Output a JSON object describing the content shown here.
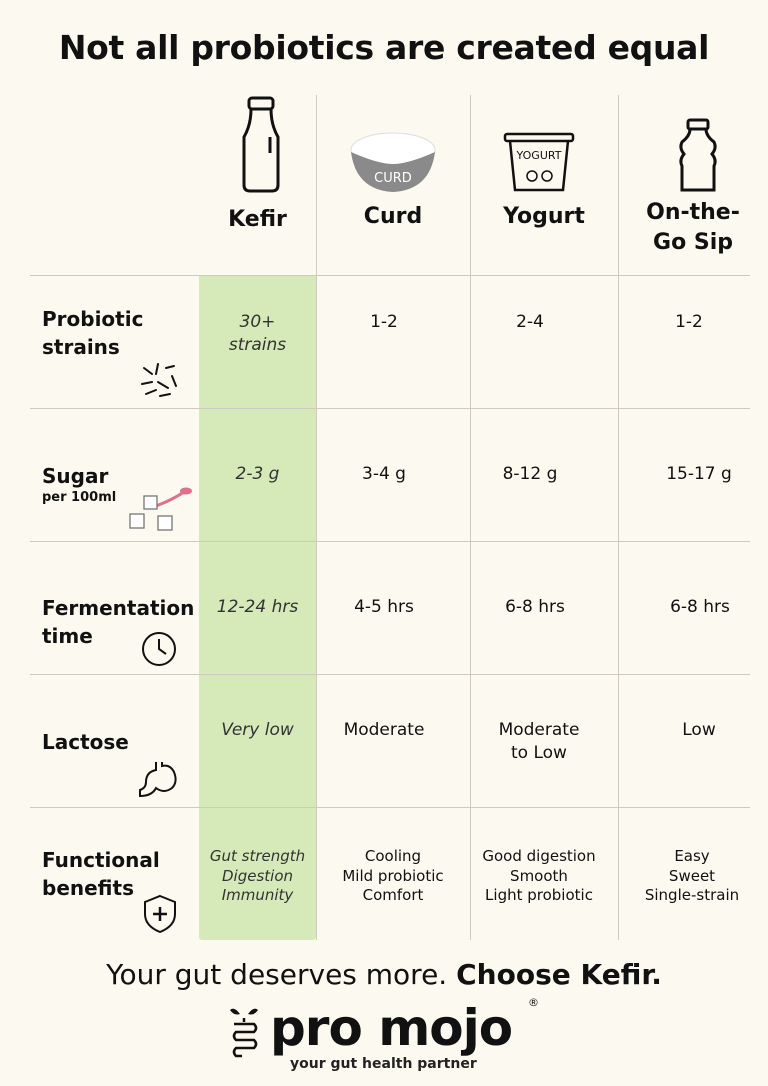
{
  "title": "Not all probiotics are created equal",
  "columns": [
    {
      "name": "Kefir",
      "icon": "bottle-icon"
    },
    {
      "name": "Curd",
      "icon": "curd-bowl-icon",
      "icon_text": "CURD"
    },
    {
      "name": "Yogurt",
      "icon": "yogurt-cup-icon",
      "icon_text": "YOGURT"
    },
    {
      "name": "On-the-Go Sip",
      "name_line1": "On-the-",
      "name_line2": "Go Sip",
      "icon": "small-bottle-icon"
    }
  ],
  "rows": [
    {
      "label_line1": "Probiotic",
      "label_line2": "strains",
      "icon": "bacteria-icon",
      "values": [
        "30+ strains",
        "1-2",
        "2-4",
        "1-2"
      ],
      "kefir_line1": "30+",
      "kefir_line2": "strains"
    },
    {
      "label_line1": "Sugar",
      "sublabel": "per 100ml",
      "icon": "sugar-cubes-spoon-icon",
      "values": [
        "2-3 g",
        "3-4 g",
        "8-12 g",
        "15-17 g"
      ]
    },
    {
      "label_line1": "Fermentation",
      "label_line2": "time",
      "icon": "clock-icon",
      "values": [
        "12-24 hrs",
        "4-5 hrs",
        "6-8 hrs",
        "6-8 hrs"
      ]
    },
    {
      "label_line1": "Lactose",
      "icon": "stomach-icon",
      "values": [
        "Very low",
        "Moderate",
        "Moderate to Low",
        "Low"
      ],
      "yogurt_line1": "Moderate",
      "yogurt_line2": "to Low"
    },
    {
      "label_line1": "Functional",
      "label_line2": "benefits",
      "icon": "shield-plus-icon",
      "values": [
        [
          "Gut strength",
          "Digestion",
          "Immunity"
        ],
        [
          "Cooling",
          "Mild probiotic",
          "Comfort"
        ],
        [
          "Good digestion",
          "Smooth",
          "Light probiotic"
        ],
        [
          "Easy",
          "Sweet",
          "Single-strain"
        ]
      ]
    }
  ],
  "footer": {
    "text": "Your gut deserves more.",
    "cta": "Choose Kefir."
  },
  "brand": {
    "name": "pro mojo",
    "tagline": "your gut health partner",
    "registered": "®"
  },
  "colors": {
    "background": "#fcf9f1",
    "highlight": "#d6eab9",
    "accent_spoon": "#e0708a",
    "curd_bowl": "#8a8a8a"
  }
}
